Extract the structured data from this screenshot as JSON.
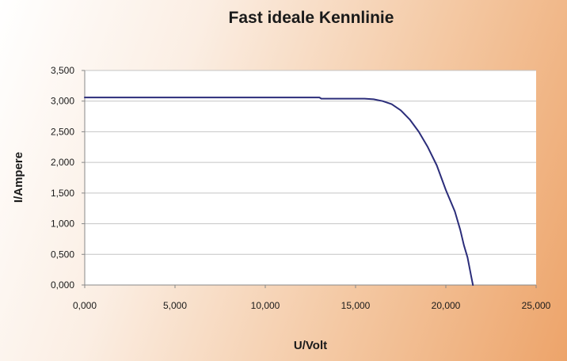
{
  "chart_data": {
    "type": "line",
    "title": "Fast ideale Kennlinie",
    "xlabel": "U/Volt",
    "ylabel": "I/Ampere",
    "xlim": [
      0,
      25
    ],
    "ylim": [
      0,
      3.5
    ],
    "grid": true,
    "x_ticks": [
      0,
      5,
      10,
      15,
      20,
      25
    ],
    "y_ticks": [
      0,
      0.5,
      1,
      1.5,
      2,
      2.5,
      3,
      3.5
    ],
    "x_tick_labels": [
      "0,000",
      "5,000",
      "10,000",
      "15,000",
      "20,000",
      "25,000"
    ],
    "y_tick_labels": [
      "0,000",
      "0,500",
      "1,000",
      "1,500",
      "2,000",
      "2,500",
      "3,000",
      "3,500"
    ],
    "series": [
      {
        "color": "#2b2d7a",
        "x": [
          0,
          5,
          10,
          13,
          13.1,
          15.5,
          16.0,
          16.5,
          17.0,
          17.5,
          18.0,
          18.5,
          19.0,
          19.5,
          20.0,
          20.5,
          20.8,
          21.0,
          21.2,
          21.4,
          21.5
        ],
        "y": [
          3.06,
          3.06,
          3.06,
          3.06,
          3.04,
          3.04,
          3.03,
          3.0,
          2.95,
          2.85,
          2.7,
          2.5,
          2.25,
          1.95,
          1.55,
          1.2,
          0.9,
          0.65,
          0.45,
          0.15,
          0.0
        ]
      }
    ]
  }
}
